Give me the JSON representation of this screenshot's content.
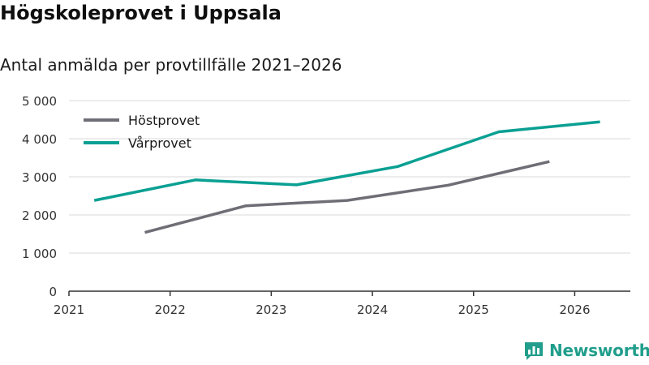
{
  "header": {
    "title": "Högskoleprovet i Uppsala",
    "subtitle": "Antal anmälda per provtillfälle 2021–2026"
  },
  "branding": {
    "name": "Newsworthy",
    "logo_icon": "newsworthy-bar-chart-logo-icon",
    "color": "#219e8c"
  },
  "chart_data": {
    "type": "line",
    "title": "Högskoleprovet i Uppsala",
    "subtitle": "Antal anmälda per provtillfälle 2021–2026",
    "xlabel": "",
    "ylabel": "",
    "xlim": [
      2021,
      2026.55
    ],
    "ylim": [
      0,
      5000
    ],
    "x_ticks": [
      {
        "value": 2021,
        "label": "2021"
      },
      {
        "value": 2022,
        "label": "2022"
      },
      {
        "value": 2023,
        "label": "2023"
      },
      {
        "value": 2024,
        "label": "2024"
      },
      {
        "value": 2025,
        "label": "2025"
      },
      {
        "value": 2026,
        "label": "2026"
      }
    ],
    "y_ticks": [
      {
        "value": 0,
        "label": "0"
      },
      {
        "value": 1000,
        "label": "1 000"
      },
      {
        "value": 2000,
        "label": "2 000"
      },
      {
        "value": 3000,
        "label": "3 000"
      },
      {
        "value": 4000,
        "label": "4 000"
      },
      {
        "value": 5000,
        "label": "5 000"
      }
    ],
    "grid": true,
    "legend_position": "top-left",
    "series": [
      {
        "name": "Höstprovet",
        "color": "#6f6e76",
        "points": [
          {
            "x": 2021.75,
            "y": 1540
          },
          {
            "x": 2022.75,
            "y": 2240
          },
          {
            "x": 2023.75,
            "y": 2380
          },
          {
            "x": 2024.75,
            "y": 2780
          },
          {
            "x": 2025.75,
            "y": 3400
          }
        ]
      },
      {
        "name": "Vårprovet",
        "color": "#0aa093",
        "points": [
          {
            "x": 2021.25,
            "y": 2380
          },
          {
            "x": 2022.25,
            "y": 2920
          },
          {
            "x": 2023.25,
            "y": 2790
          },
          {
            "x": 2024.25,
            "y": 3270
          },
          {
            "x": 2025.25,
            "y": 4180
          },
          {
            "x": 2026.25,
            "y": 4440
          }
        ]
      }
    ]
  }
}
